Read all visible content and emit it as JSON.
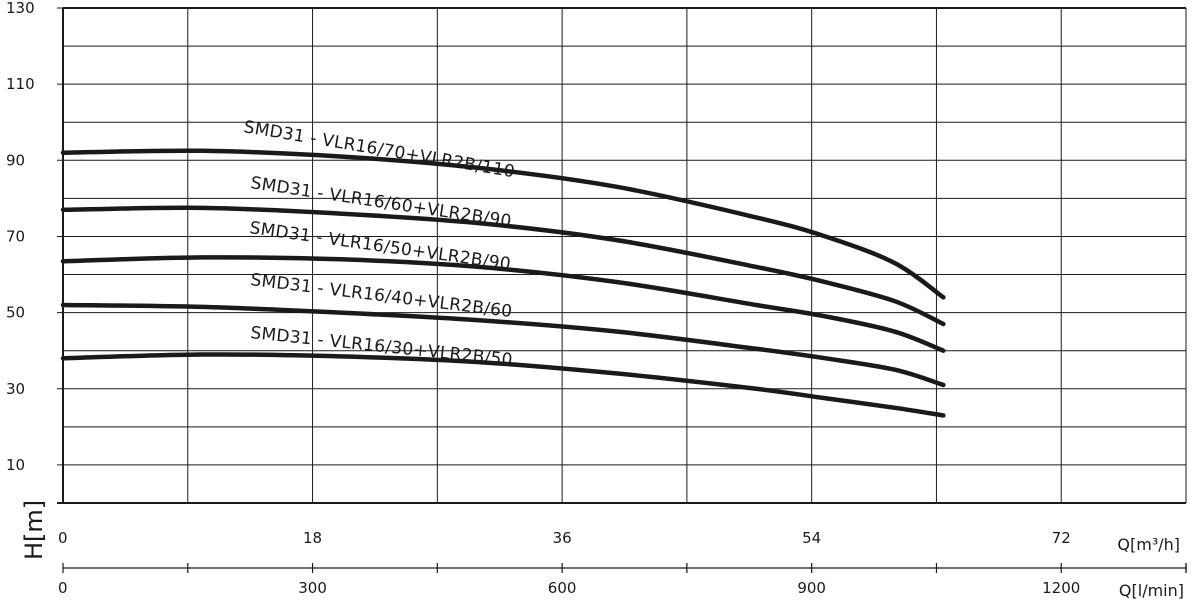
{
  "chart_data": {
    "type": "line",
    "ylabel": "H[m]",
    "xlabel": "Q[m³/h]",
    "xlabel_secondary": "Q[l/min]",
    "ylim": [
      0,
      130
    ],
    "xlim": [
      0,
      81
    ],
    "y_ticks": [
      10,
      30,
      50,
      70,
      90,
      110,
      130
    ],
    "x_ticks": [
      0,
      18,
      36,
      54,
      72
    ],
    "x2_ticks": [
      0,
      300,
      600,
      900,
      1200
    ],
    "grid": true,
    "series": [
      {
        "name": "SMD31 - VLR16/70+VLR2B/110",
        "x": [
          0,
          10,
          20,
          30,
          40,
          50,
          55,
          60,
          63.5
        ],
        "y": [
          92,
          92.5,
          91,
          88,
          83,
          75,
          70,
          63,
          54
        ]
      },
      {
        "name": "SMD31 - VLR16/60+VLR2B/90",
        "x": [
          0,
          10,
          20,
          30,
          40,
          50,
          55,
          60,
          63.5
        ],
        "y": [
          77,
          77.5,
          76,
          73.5,
          69,
          62,
          58,
          53,
          47
        ]
      },
      {
        "name": "SMD31 - VLR16/50+VLR2B/90",
        "x": [
          0,
          10,
          20,
          30,
          40,
          50,
          55,
          60,
          63.5
        ],
        "y": [
          63.5,
          64.5,
          64,
          62,
          58,
          52,
          49,
          45,
          40
        ]
      },
      {
        "name": "SMD31 - VLR16/40+VLR2B/60",
        "x": [
          0,
          10,
          20,
          30,
          40,
          50,
          55,
          60,
          63.5
        ],
        "y": [
          52,
          51.5,
          50,
          48,
          45,
          40.5,
          38,
          35,
          31
        ]
      },
      {
        "name": "SMD31 - VLR16/30+VLR2B/50",
        "x": [
          0,
          10,
          20,
          30,
          40,
          50,
          55,
          60,
          63.5
        ],
        "y": [
          38,
          39,
          38.5,
          37,
          34,
          30,
          27.5,
          25,
          23
        ]
      }
    ]
  }
}
